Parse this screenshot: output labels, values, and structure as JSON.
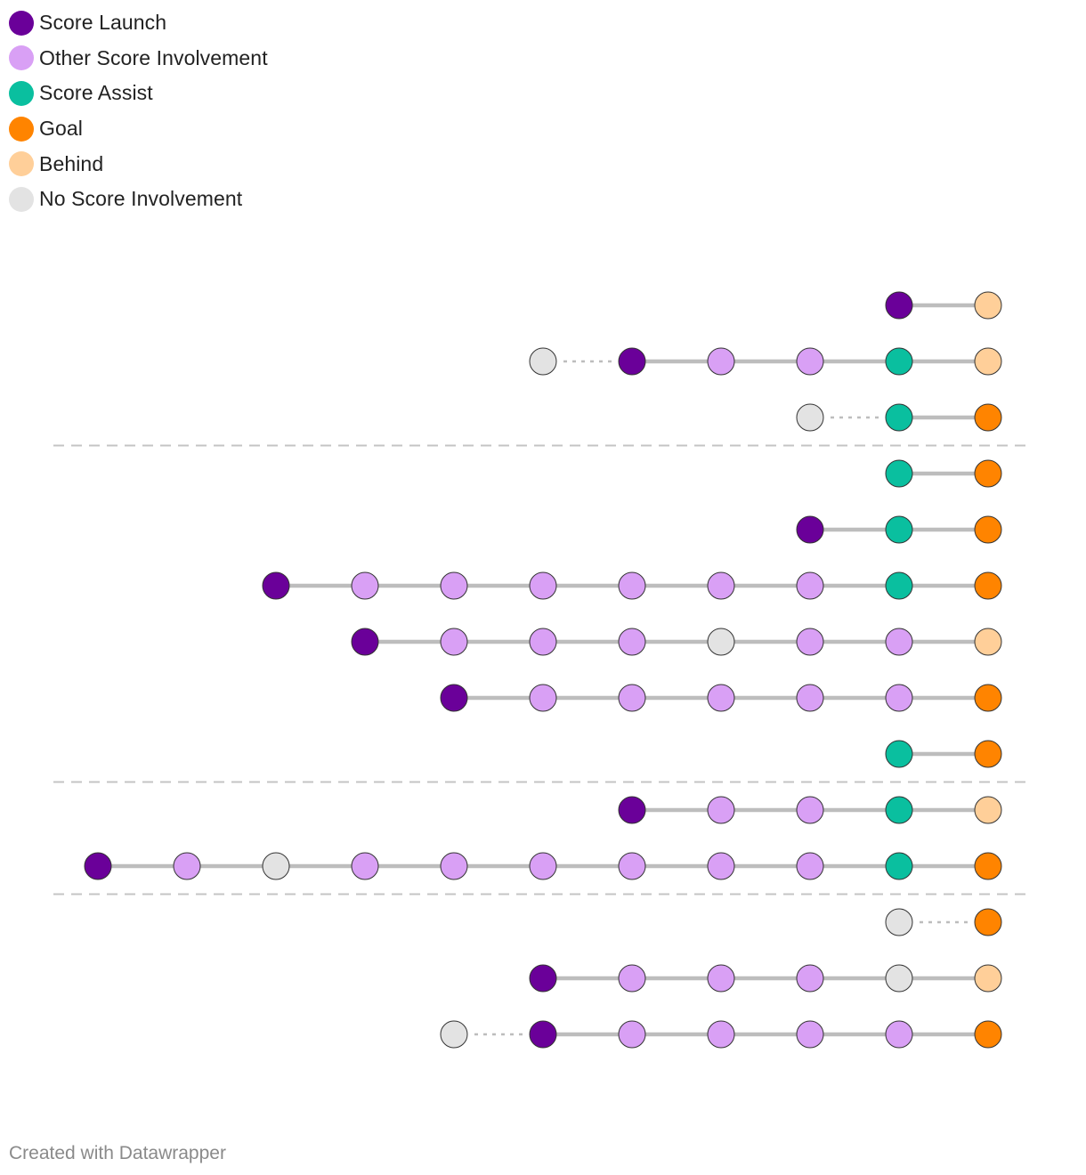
{
  "legend": [
    {
      "key": "launch",
      "label": "Score Launch",
      "color": "#6a0099"
    },
    {
      "key": "other",
      "label": "Other Score Involvement",
      "color": "#d9a0f5"
    },
    {
      "key": "assist",
      "label": "Score Assist",
      "color": "#0abf9f"
    },
    {
      "key": "goal",
      "label": "Goal",
      "color": "#ff8400"
    },
    {
      "key": "behind",
      "label": "Behind",
      "color": "#ffcf99"
    },
    {
      "key": "none",
      "label": "No Score Involvement",
      "color": "#e3e3e3"
    }
  ],
  "chains": [
    {
      "steps": [
        "launch",
        "behind"
      ],
      "dotted_after": 0
    },
    {
      "steps": [
        "none",
        "launch",
        "other",
        "other",
        "assist",
        "behind"
      ],
      "dotted_after": 1
    },
    {
      "steps": [
        "none",
        "assist",
        "goal"
      ],
      "dotted_after": 1
    },
    {
      "divider": true
    },
    {
      "steps": [
        "assist",
        "goal"
      ],
      "dotted_after": 0
    },
    {
      "steps": [
        "launch",
        "assist",
        "goal"
      ],
      "dotted_after": 0
    },
    {
      "steps": [
        "launch",
        "other",
        "other",
        "other",
        "other",
        "other",
        "other",
        "assist",
        "goal"
      ],
      "dotted_after": 0
    },
    {
      "steps": [
        "launch",
        "other",
        "other",
        "other",
        "none",
        "other",
        "other",
        "behind"
      ],
      "dotted_after": 0
    },
    {
      "steps": [
        "launch",
        "other",
        "other",
        "other",
        "other",
        "other",
        "goal"
      ],
      "dotted_after": 0
    },
    {
      "steps": [
        "assist",
        "goal"
      ],
      "dotted_after": 0
    },
    {
      "divider": true
    },
    {
      "steps": [
        "launch",
        "other",
        "other",
        "assist",
        "behind"
      ],
      "dotted_after": 0
    },
    {
      "steps": [
        "launch",
        "other",
        "none",
        "other",
        "other",
        "other",
        "other",
        "other",
        "other",
        "assist",
        "goal"
      ],
      "dotted_after": 0
    },
    {
      "divider": true
    },
    {
      "steps": [
        "none",
        "goal"
      ],
      "dotted_after": 1
    },
    {
      "steps": [
        "launch",
        "other",
        "other",
        "other",
        "none",
        "behind"
      ],
      "dotted_after": 0
    },
    {
      "steps": [
        "none",
        "launch",
        "other",
        "other",
        "other",
        "other",
        "goal"
      ],
      "dotted_after": 1
    }
  ],
  "footer": "Created with Datawrapper"
}
